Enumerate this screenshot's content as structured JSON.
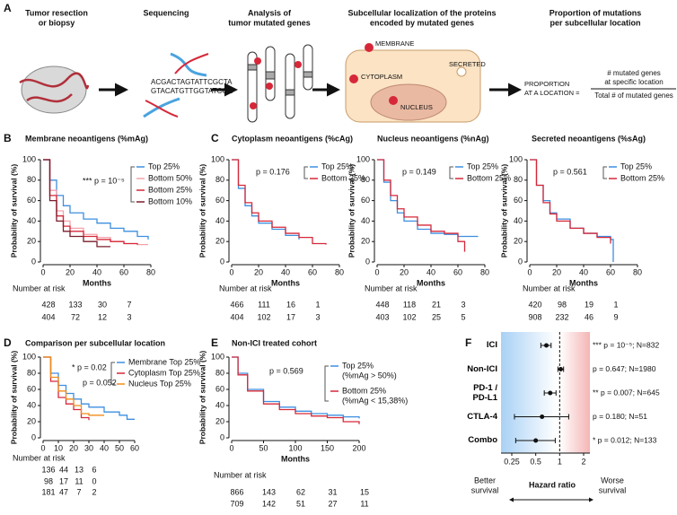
{
  "panel_labels": [
    "A",
    "B",
    "C",
    "D",
    "E",
    "F"
  ],
  "panel_a": {
    "steps": [
      [
        "Tumor resection",
        "or biopsy"
      ],
      [
        "Sequencing"
      ],
      [
        "Analysis of",
        "tumor mutated genes"
      ],
      [
        "Subcellular localization of the proteins",
        "encoded by mutated genes"
      ],
      [
        "Proportion of mutations",
        "per subcellular location"
      ]
    ],
    "dna": [
      "ACGACTAGTATTCGCTA",
      "GTACATGTTGGTATCGG"
    ],
    "cell_labels": [
      "MEMBRANE",
      "CYTOPLASM",
      "NUCLEUS",
      "SECRETED"
    ],
    "formula": {
      "left": [
        "PROPORTION",
        "AT A LOCATION ="
      ],
      "numerator": [
        "# mutated genes",
        "at specific location"
      ],
      "denominator": "Total # of mutated genes"
    }
  },
  "chart_data": [
    {
      "type": "km",
      "title": "Membrane neoantigens (%mAg)",
      "ylabel": "Probability of survival (%)",
      "xlabel": "Months",
      "xlim": [
        0,
        80
      ],
      "xticks": [
        0,
        20,
        40,
        60,
        80
      ],
      "ylim": [
        0,
        100
      ],
      "yticks": [
        0,
        20,
        40,
        60,
        80,
        100
      ],
      "x": [
        0,
        5,
        10,
        15,
        20,
        30,
        40,
        50,
        60,
        70,
        78
      ],
      "series": [
        {
          "name": "Top 25%",
          "color": "#3d8fe0",
          "values": [
            100,
            80,
            65,
            55,
            48,
            42,
            38,
            33,
            30,
            25,
            22
          ]
        },
        {
          "name": "Bottom 50%",
          "color": "#f4a3ab",
          "values": [
            100,
            70,
            50,
            40,
            33,
            27,
            24,
            20,
            18,
            17,
            17
          ]
        },
        {
          "name": "Bottom 25%",
          "color": "#d62839",
          "values": [
            100,
            65,
            45,
            35,
            30,
            25,
            22,
            20,
            18,
            17,
            null
          ]
        },
        {
          "name": "Bottom 10%",
          "color": "#7a1d2b",
          "values": [
            100,
            60,
            40,
            30,
            25,
            20,
            15,
            15,
            null,
            null,
            null
          ]
        }
      ],
      "annotations": [
        "*** p = 10⁻⁵"
      ],
      "risk_table": {
        "label": "Number at risk",
        "rows": [
          [
            428,
            133,
            30,
            7
          ],
          [
            404,
            72,
            12,
            3
          ]
        ]
      }
    },
    {
      "type": "km",
      "title": "Cytoplasm neoantigens (%cAg)",
      "ylabel": "Probability of survival (%)",
      "xlabel": "Months",
      "xlim": [
        0,
        80
      ],
      "xticks": [
        0,
        20,
        40,
        60,
        80
      ],
      "ylim": [
        0,
        100
      ],
      "yticks": [
        0,
        20,
        40,
        60,
        80,
        100
      ],
      "x": [
        0,
        5,
        10,
        15,
        20,
        30,
        40,
        50,
        60,
        70
      ],
      "series": [
        {
          "name": "Top 25%",
          "color": "#3d8fe0",
          "values": [
            100,
            72,
            55,
            45,
            38,
            32,
            26,
            22,
            null,
            null
          ]
        },
        {
          "name": "Bottom 25%",
          "color": "#d62839",
          "values": [
            100,
            75,
            58,
            48,
            40,
            34,
            28,
            24,
            18,
            17
          ]
        }
      ],
      "annotations": [
        "p = 0.176"
      ],
      "risk_table": {
        "label": "Number at risk",
        "rows": [
          [
            466,
            111,
            16,
            1
          ],
          [
            404,
            102,
            17,
            3
          ]
        ]
      }
    },
    {
      "type": "km",
      "title": "Nucleus neoantigens (%nAg)",
      "ylabel": "Probability of survival (%)",
      "xlabel": "Months",
      "xlim": [
        0,
        80
      ],
      "xticks": [
        0,
        20,
        40,
        60,
        80
      ],
      "ylim": [
        0,
        100
      ],
      "yticks": [
        0,
        20,
        40,
        60,
        80,
        100
      ],
      "x": [
        0,
        5,
        10,
        15,
        20,
        30,
        40,
        50,
        60,
        65,
        75
      ],
      "series": [
        {
          "name": "Top 25%",
          "color": "#3d8fe0",
          "values": [
            100,
            78,
            60,
            48,
            40,
            32,
            28,
            27,
            25,
            25,
            25
          ]
        },
        {
          "name": "Bottom 25%",
          "color": "#d62839",
          "values": [
            100,
            80,
            65,
            52,
            44,
            36,
            30,
            28,
            20,
            10,
            null
          ]
        }
      ],
      "annotations": [
        "p = 0.149"
      ],
      "risk_table": {
        "label": "Number at risk",
        "rows": [
          [
            448,
            118,
            21,
            3
          ],
          [
            403,
            102,
            25,
            5
          ]
        ]
      }
    },
    {
      "type": "km",
      "title": "Secreted neoantigens (%sAg)",
      "ylabel": "Probability of survival (%)",
      "xlabel": "Months",
      "xlim": [
        0,
        80
      ],
      "xticks": [
        0,
        20,
        40,
        60,
        80
      ],
      "ylim": [
        0,
        100
      ],
      "yticks": [
        0,
        20,
        40,
        60,
        80,
        100
      ],
      "x": [
        0,
        5,
        10,
        15,
        20,
        30,
        40,
        50,
        60,
        62
      ],
      "series": [
        {
          "name": "Top 25%",
          "color": "#3d8fe0",
          "values": [
            100,
            75,
            60,
            48,
            42,
            33,
            28,
            25,
            22,
            0
          ]
        },
        {
          "name": "Bottom 25%",
          "color": "#d62839",
          "values": [
            100,
            75,
            58,
            47,
            40,
            33,
            28,
            24,
            18,
            null
          ]
        }
      ],
      "annotations": [
        "p = 0.561"
      ],
      "risk_table": {
        "label": "Number at risk",
        "rows": [
          [
            420,
            98,
            19,
            1
          ],
          [
            908,
            232,
            46,
            9
          ]
        ]
      }
    },
    {
      "type": "km",
      "title": "Comparison per subcellular location",
      "ylabel": "Probability of survival (%)",
      "xlim": [
        0,
        60
      ],
      "xticks": [
        0,
        10,
        20,
        30,
        40,
        50,
        60
      ],
      "ylim": [
        0,
        100
      ],
      "yticks": [
        0,
        20,
        40,
        60,
        80,
        100
      ],
      "x": [
        0,
        5,
        10,
        15,
        20,
        25,
        30,
        40,
        50,
        55,
        60
      ],
      "series": [
        {
          "name": "Membrane Top 25%",
          "color": "#3d8fe0",
          "values": [
            100,
            80,
            65,
            55,
            48,
            42,
            38,
            32,
            28,
            23,
            23
          ]
        },
        {
          "name": "Cytoplasm Top 25%",
          "color": "#d62839",
          "values": [
            100,
            70,
            50,
            42,
            35,
            25,
            22,
            null,
            null,
            null,
            null
          ]
        },
        {
          "name": "Nucleus Top 25%",
          "color": "#f08c1a",
          "values": [
            100,
            75,
            58,
            48,
            40,
            30,
            28,
            28,
            null,
            null,
            null
          ]
        }
      ],
      "annotations": [
        "* p = 0.02",
        "p = 0.052"
      ],
      "risk_table": {
        "label": "Number at risk",
        "rows": [
          [
            136,
            44,
            13,
            6
          ],
          [
            98,
            17,
            11,
            0
          ],
          [
            181,
            47,
            7,
            2
          ]
        ]
      }
    },
    {
      "type": "km",
      "title": "Non-ICI treated cohort",
      "ylabel": "Probability of survival (%)",
      "xlabel": "Months",
      "xlim": [
        0,
        200
      ],
      "xticks": [
        0,
        50,
        100,
        150,
        200
      ],
      "ylim": [
        0,
        100
      ],
      "yticks": [
        0,
        20,
        40,
        60,
        80,
        100
      ],
      "x": [
        0,
        10,
        25,
        50,
        75,
        100,
        125,
        150,
        175,
        200
      ],
      "series": [
        {
          "name": "Top 25%",
          "color": "#3d8fe0",
          "values": [
            100,
            80,
            60,
            45,
            38,
            33,
            30,
            28,
            26,
            24
          ]
        },
        {
          "name": "Bottom 25%",
          "color": "#d62839",
          "values": [
            100,
            78,
            58,
            42,
            35,
            30,
            27,
            25,
            20,
            17
          ]
        }
      ],
      "legend_notes": [
        "(%mAg > 50%)",
        "(%mAg < 15,38%)"
      ],
      "annotations": [
        "p = 0.569"
      ],
      "risk_table": {
        "label": "Number at risk",
        "rows": [
          [
            866,
            143,
            62,
            31,
            15
          ],
          [
            709,
            142,
            51,
            27,
            11
          ]
        ]
      }
    },
    {
      "type": "forest",
      "xlabel": "Hazard ratio",
      "log_x": true,
      "xlim": [
        0.25,
        2
      ],
      "xticks": [
        0.25,
        0.5,
        1,
        2
      ],
      "reference_line": 1,
      "categories": [
        "ICI",
        "Non-ICI",
        "PD-1 / PD-L1",
        "CTLA-4",
        "Combo"
      ],
      "values": [
        0.68,
        1.03,
        0.76,
        0.6,
        0.5
      ],
      "ci_low": [
        0.58,
        0.95,
        0.64,
        0.27,
        0.28
      ],
      "ci_high": [
        0.78,
        1.12,
        0.9,
        1.3,
        0.88
      ],
      "annotations": [
        "*** p = 10⁻⁵; N=832",
        "p = 0.647; N=1980",
        "** p = 0.007; N=645",
        "p = 0.180; N=51",
        "* p = 0.012; N=133"
      ],
      "left_label": [
        "Better",
        "survival"
      ],
      "right_label": [
        "Worse",
        "survival"
      ],
      "color": "#111111"
    }
  ]
}
